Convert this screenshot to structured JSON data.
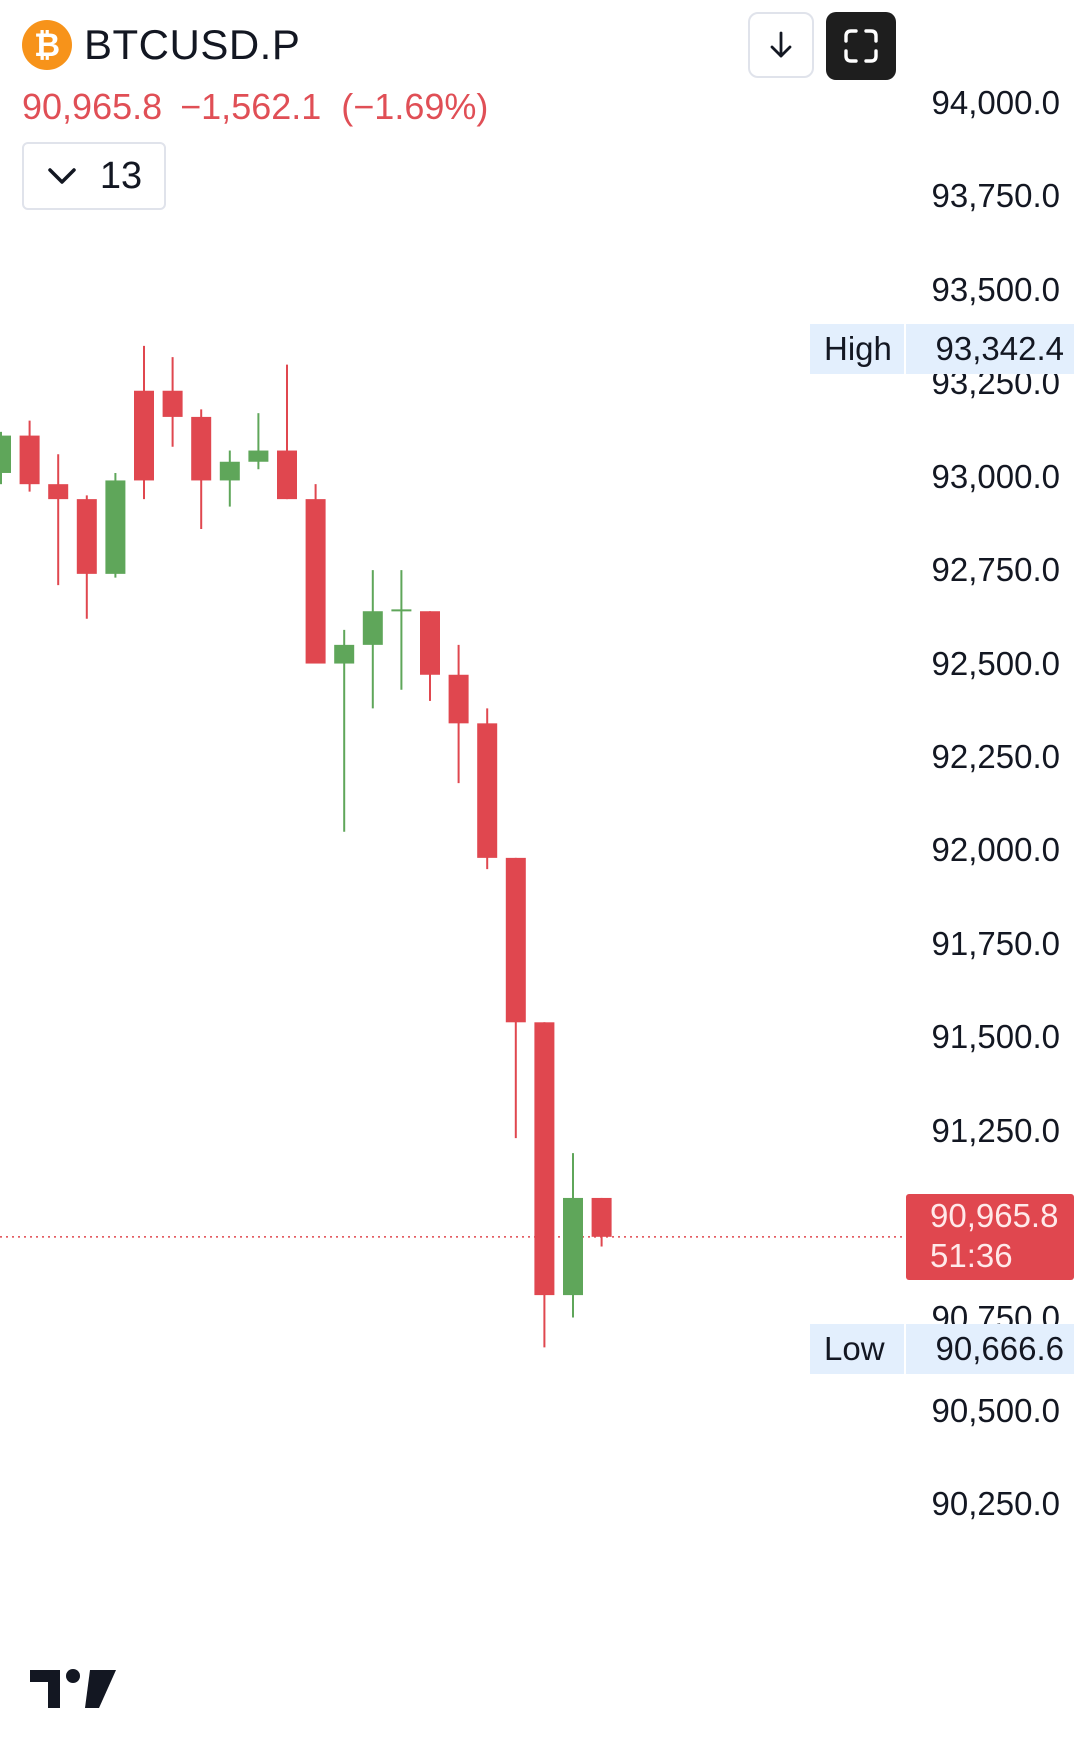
{
  "header": {
    "coin_icon": "bitcoin-icon",
    "coin_glyph": "₿",
    "symbol": "BTCUSD.P",
    "last_price": "90,965.8",
    "change": "−1,562.1",
    "change_pct": "(−1.69%)",
    "interval": "13"
  },
  "toolbar": {
    "download_icon": "arrow-down-icon",
    "fullscreen_icon": "fullscreen-icon"
  },
  "price_tag": {
    "price": "90,965.8",
    "countdown": "51:36"
  },
  "high_marker": {
    "label": "High",
    "value": "93,342.4"
  },
  "low_marker": {
    "label": "Low",
    "value": "90,666.6"
  },
  "colors": {
    "up": "#5fa65a",
    "down": "#e0474f",
    "price_line": "#e0474f",
    "marker_bg": "#e3effd"
  },
  "chart_data": {
    "type": "candlestick",
    "y_axis_labels": [
      "94,000.0",
      "93,750.0",
      "93,500.0",
      "93,250.0",
      "93,000.0",
      "92,750.0",
      "92,500.0",
      "92,250.0",
      "92,000.0",
      "91,750.0",
      "91,500.0",
      "91,250.0",
      "90,750.0",
      "90,500.0",
      "90,250.0"
    ],
    "y_axis_values": [
      94000,
      93750,
      93500,
      93250,
      93000,
      92750,
      92500,
      92250,
      92000,
      91750,
      91500,
      91250,
      90750,
      90500,
      90250
    ],
    "ylim": [
      90100,
      94300
    ],
    "last_price": 90965.8,
    "high": 93342.4,
    "low": 90666.6,
    "candles": [
      {
        "o": 93010,
        "h": 93120,
        "l": 92980,
        "c": 93110
      },
      {
        "o": 93110,
        "h": 93150,
        "l": 92960,
        "c": 92980
      },
      {
        "o": 92980,
        "h": 93060,
        "l": 92710,
        "c": 92940
      },
      {
        "o": 92940,
        "h": 92950,
        "l": 92620,
        "c": 92740
      },
      {
        "o": 92740,
        "h": 93010,
        "l": 92730,
        "c": 92990
      },
      {
        "o": 93230,
        "h": 93350,
        "l": 92940,
        "c": 92990
      },
      {
        "o": 93230,
        "h": 93320,
        "l": 93080,
        "c": 93160
      },
      {
        "o": 93160,
        "h": 93180,
        "l": 92860,
        "c": 92990
      },
      {
        "o": 92990,
        "h": 93070,
        "l": 92920,
        "c": 93040
      },
      {
        "o": 93040,
        "h": 93170,
        "l": 93020,
        "c": 93070
      },
      {
        "o": 93070,
        "h": 93300,
        "l": 92940,
        "c": 92940
      },
      {
        "o": 92940,
        "h": 92980,
        "l": 92500,
        "c": 92500
      },
      {
        "o": 92500,
        "h": 92590,
        "l": 92050,
        "c": 92550
      },
      {
        "o": 92550,
        "h": 92750,
        "l": 92380,
        "c": 92640
      },
      {
        "o": 92640,
        "h": 92750,
        "l": 92430,
        "c": 92645
      },
      {
        "o": 92640,
        "h": 92640,
        "l": 92400,
        "c": 92470
      },
      {
        "o": 92470,
        "h": 92550,
        "l": 92180,
        "c": 92340
      },
      {
        "o": 92340,
        "h": 92380,
        "l": 91950,
        "c": 91980
      },
      {
        "o": 91980,
        "h": 91980,
        "l": 91230,
        "c": 91540
      },
      {
        "o": 91540,
        "h": 91540,
        "l": 90670,
        "c": 90810
      },
      {
        "o": 90810,
        "h": 91190,
        "l": 90750,
        "c": 91070
      },
      {
        "o": 91070,
        "h": 91070,
        "l": 90940,
        "c": 90966
      }
    ]
  }
}
